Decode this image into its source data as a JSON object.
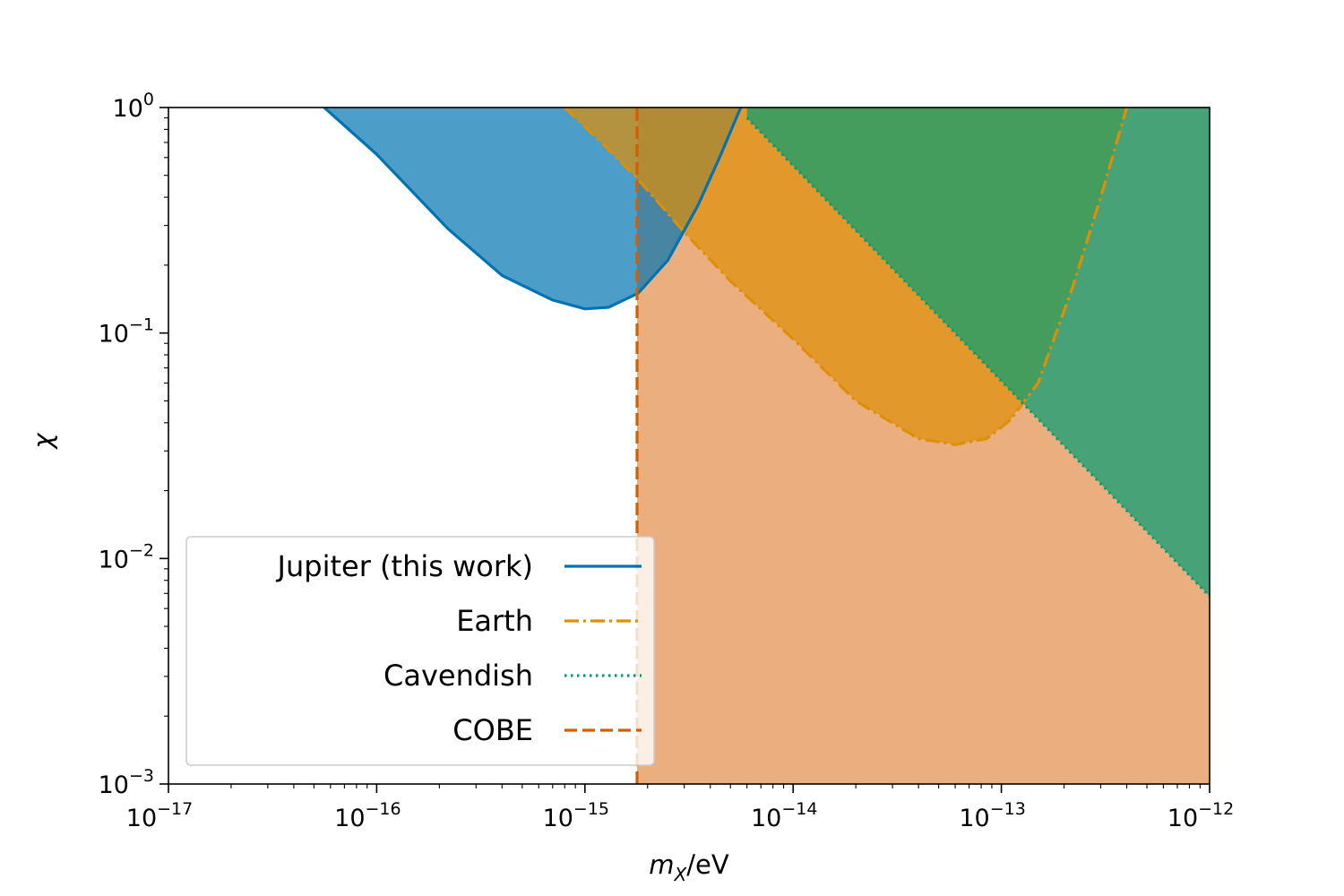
{
  "chart_data": {
    "type": "area",
    "xlabel": "m_X/eV",
    "ylabel": "χ",
    "xscale": "log",
    "yscale": "log",
    "xlim": [
      1e-17,
      1e-12
    ],
    "ylim": [
      0.001,
      1
    ],
    "grid": false,
    "legend_position": "lower-left",
    "x_ticks": [
      {
        "base": "10",
        "exp": "−17"
      },
      {
        "base": "10",
        "exp": "−16"
      },
      {
        "base": "10",
        "exp": "−15"
      },
      {
        "base": "10",
        "exp": "−14"
      },
      {
        "base": "10",
        "exp": "−13"
      },
      {
        "base": "10",
        "exp": "−12"
      }
    ],
    "y_ticks": [
      {
        "base": "10",
        "exp": "−3"
      },
      {
        "base": "10",
        "exp": "−2"
      },
      {
        "base": "10",
        "exp": "−1"
      },
      {
        "base": "10",
        "exp": "0"
      }
    ],
    "series": [
      {
        "name": "Jupiter (this work)",
        "style": "solid",
        "color": "#0173b2",
        "fill": "#0173b2",
        "fill_alpha": 0.7,
        "x": [
          5.6e-17,
          1e-16,
          2.2e-16,
          4e-16,
          7e-16,
          1e-15,
          1.3e-15,
          1.8e-15,
          2.5e-15,
          3.5e-15,
          4.5e-15,
          5.6e-15
        ],
        "y": [
          1.0,
          0.62,
          0.29,
          0.18,
          0.14,
          0.128,
          0.13,
          0.15,
          0.21,
          0.37,
          0.62,
          1.0
        ]
      },
      {
        "name": "Earth",
        "style": "dashdot",
        "color": "#de8f05",
        "fill": "#de8f05",
        "fill_alpha": 0.7,
        "x": [
          8e-16,
          1.2e-15,
          1.8e-15,
          3e-15,
          5e-15,
          1e-14,
          2e-14,
          4e-14,
          6e-14,
          8.5e-14,
          1.1e-13,
          1.5e-13,
          2.2e-13,
          3e-13,
          4e-13
        ],
        "y": [
          1.0,
          0.7,
          0.48,
          0.28,
          0.17,
          0.094,
          0.05,
          0.034,
          0.032,
          0.034,
          0.041,
          0.06,
          0.16,
          0.4,
          1.0
        ]
      },
      {
        "name": "Cavendish",
        "style": "dotted",
        "color": "#029e73",
        "fill": "#029e73",
        "fill_alpha": 0.7,
        "x": [
          6e-15,
          1e-12
        ],
        "y": [
          0.9,
          0.0068
        ]
      },
      {
        "name": "COBE",
        "style": "dashed",
        "color": "#d55e00",
        "fill": "#d55e00",
        "fill_alpha": 0.5,
        "x": [
          1.78e-15,
          1.78e-15
        ],
        "y": [
          0.001,
          1.0
        ]
      }
    ]
  }
}
